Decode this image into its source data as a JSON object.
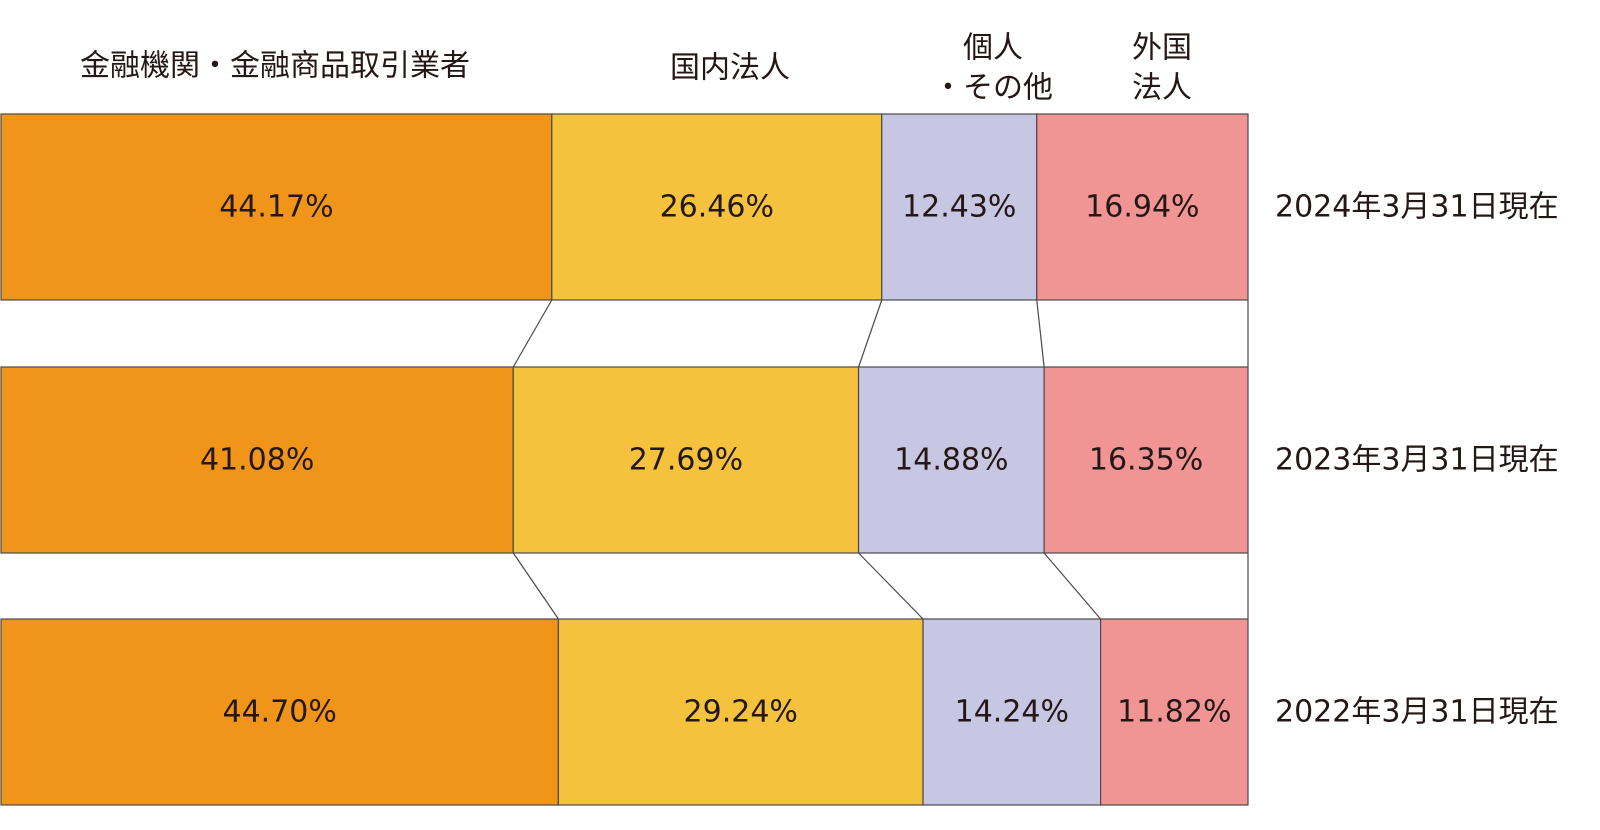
{
  "chart_data": {
    "type": "bar",
    "orientation": "horizontal",
    "stacked": "percent",
    "series": [
      {
        "name": "金融機関・金融商品取引業者",
        "header_lines": [
          "金融機関・金融商品取引業者"
        ],
        "color": "#F0951A",
        "values": [
          44.17,
          41.08,
          44.7
        ],
        "labels": [
          "44.17%",
          "41.08%",
          "44.70%"
        ]
      },
      {
        "name": "国内法人",
        "header_lines": [
          "国内法人"
        ],
        "color": "#F4C23C",
        "values": [
          26.46,
          27.69,
          29.24
        ],
        "labels": [
          "26.46%",
          "27.69%",
          "29.24%"
        ]
      },
      {
        "name": "個人・その他",
        "header_lines": [
          "個人",
          "・その他"
        ],
        "color": "#C7C7E3",
        "values": [
          12.43,
          14.88,
          14.24
        ],
        "labels": [
          "12.43%",
          "14.88%",
          "14.24%"
        ]
      },
      {
        "name": "外国法人",
        "header_lines": [
          "外国",
          "法人"
        ],
        "color": "#F09494",
        "values": [
          16.94,
          16.35,
          11.82
        ],
        "labels": [
          "16.94%",
          "16.35%",
          "11.82%"
        ]
      }
    ],
    "categories": [
      "2024年3月31日現在",
      "2023年3月31日現在",
      "2022年3月31日現在"
    ],
    "xlim": [
      0,
      100
    ],
    "connectors": true,
    "grid": false,
    "legend": "top"
  }
}
